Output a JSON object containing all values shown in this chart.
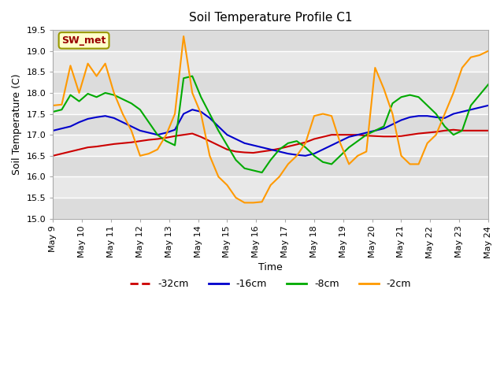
{
  "title": "Soil Temperature Profile C1",
  "xlabel": "Time",
  "ylabel": "Soil Temperature (C)",
  "ylim": [
    15.0,
    19.5
  ],
  "annotation_text": "SW_met",
  "annotation_bg": "#ffffcc",
  "annotation_border": "#999900",
  "annotation_text_color": "#990000",
  "background_color": "#ffffff",
  "plot_bg_color": "#e8e8e8",
  "grid_color": "#ffffff",
  "series": {
    "-32cm": {
      "color": "#cc0000",
      "y": [
        16.5,
        16.55,
        16.6,
        16.65,
        16.7,
        16.72,
        16.75,
        16.78,
        16.8,
        16.82,
        16.85,
        16.88,
        16.9,
        16.93,
        16.97,
        17.0,
        17.03,
        16.95,
        16.85,
        16.75,
        16.65,
        16.6,
        16.58,
        16.57,
        16.6,
        16.63,
        16.67,
        16.72,
        16.77,
        16.82,
        16.9,
        16.95,
        17.0,
        17.0,
        17.0,
        17.0,
        16.98,
        16.97,
        16.96,
        16.96,
        16.97,
        17.0,
        17.03,
        17.05,
        17.07,
        17.1,
        17.12,
        17.1,
        17.1,
        17.1,
        17.1
      ]
    },
    "-16cm": {
      "color": "#0000cc",
      "y": [
        17.1,
        17.15,
        17.2,
        17.3,
        17.38,
        17.42,
        17.45,
        17.4,
        17.3,
        17.2,
        17.1,
        17.05,
        17.0,
        17.05,
        17.12,
        17.5,
        17.6,
        17.55,
        17.4,
        17.2,
        17.0,
        16.9,
        16.8,
        16.75,
        16.7,
        16.65,
        16.6,
        16.55,
        16.52,
        16.5,
        16.55,
        16.65,
        16.75,
        16.85,
        16.95,
        17.0,
        17.05,
        17.1,
        17.15,
        17.25,
        17.35,
        17.42,
        17.45,
        17.45,
        17.42,
        17.4,
        17.5,
        17.55,
        17.6,
        17.65,
        17.7
      ]
    },
    "-8cm": {
      "color": "#00aa00",
      "y": [
        17.55,
        17.6,
        17.95,
        17.8,
        17.98,
        17.9,
        18.0,
        17.95,
        17.85,
        17.75,
        17.6,
        17.3,
        17.0,
        16.85,
        16.75,
        18.35,
        18.4,
        17.9,
        17.5,
        17.1,
        16.75,
        16.4,
        16.2,
        16.15,
        16.1,
        16.4,
        16.65,
        16.8,
        16.85,
        16.7,
        16.5,
        16.35,
        16.3,
        16.5,
        16.7,
        16.85,
        17.0,
        17.1,
        17.2,
        17.75,
        17.9,
        17.95,
        17.9,
        17.7,
        17.5,
        17.2,
        17.0,
        17.1,
        17.7,
        17.95,
        18.2
      ]
    },
    "-2cm": {
      "color": "#ff9900",
      "y": [
        17.7,
        17.72,
        18.65,
        18.0,
        18.7,
        18.4,
        18.7,
        18.0,
        17.5,
        17.1,
        16.5,
        16.55,
        16.65,
        17.0,
        17.5,
        19.35,
        18.0,
        17.5,
        16.5,
        16.0,
        15.8,
        15.5,
        15.38,
        15.38,
        15.4,
        15.8,
        16.0,
        16.3,
        16.5,
        16.8,
        17.45,
        17.5,
        17.45,
        16.8,
        16.3,
        16.5,
        16.6,
        18.6,
        18.1,
        17.5,
        16.5,
        16.3,
        16.3,
        16.8,
        17.0,
        17.5,
        18.0,
        18.6,
        18.85,
        18.9,
        19.0
      ]
    }
  },
  "xtick_labels": [
    "May 9",
    "May 10",
    "May 11",
    "May 12",
    "May 13",
    "May 14",
    "May 15",
    "May 16",
    "May 17",
    "May 18",
    "May 19",
    "May 20",
    "May 21",
    "May 22",
    "May 23",
    "May 24"
  ],
  "xtick_positions": [
    0,
    1,
    2,
    3,
    4,
    5,
    6,
    7,
    8,
    9,
    10,
    11,
    12,
    13,
    14,
    15
  ],
  "ytick_labels": [
    "15.0",
    "15.5",
    "16.0",
    "16.5",
    "17.0",
    "17.5",
    "18.0",
    "18.5",
    "19.0",
    "19.5"
  ],
  "ytick_values": [
    15.0,
    15.5,
    16.0,
    16.5,
    17.0,
    17.5,
    18.0,
    18.5,
    19.0,
    19.5
  ],
  "legend_labels": [
    "-32cm",
    "-16cm",
    "-8cm",
    "-2cm"
  ],
  "legend_colors": [
    "#cc0000",
    "#0000cc",
    "#00aa00",
    "#ff9900"
  ]
}
